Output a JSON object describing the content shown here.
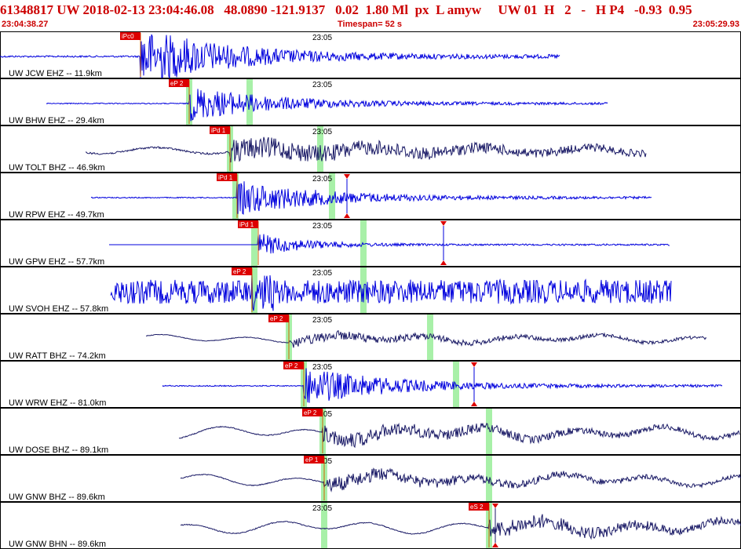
{
  "header": {
    "event_id": "61348817",
    "network": "UW",
    "datetime": "2018-02-13 23:04:46.08",
    "lat": "48.0890",
    "lon": "-121.9137",
    "depth": "0.02",
    "magnitude": "1.80",
    "mag_type": "Ml",
    "etype": "px",
    "flag": "L",
    "user": "amyw",
    "source": "UW",
    "version": "01",
    "h1": "H",
    "h2": "2",
    "h3": "-",
    "h4": "H",
    "h5": "P4",
    "v1": "-0.93",
    "v2": "0.95",
    "start_time": "23:04:38.27",
    "timespan": "Timespan=  52 s",
    "end_time": "23:05:29.93"
  },
  "time_tick_label": "23:05",
  "colors": {
    "header_text": "#cc0000",
    "trace_blue": "#0000dd",
    "trace_navy": "#1a1a66",
    "pick_box": "#dd0000",
    "pick_text": "#ffffff",
    "theoretical_band": "#a8f0a8",
    "amp_marker": "#dd0000",
    "panel_border": "#000000"
  },
  "traces": [
    {
      "label": "UW JCW EHZ -- 11.9km",
      "pick": "iPc0",
      "color": "blue",
      "amp": 0.95,
      "style": "impulsive",
      "start": 0.0,
      "end": 0.755,
      "pick_frac": 0.19,
      "band_fracs": [],
      "markers": []
    },
    {
      "label": "UW BHW EHZ -- 29.4km",
      "pick": "eP 2",
      "color": "blue",
      "amp": 0.55,
      "style": "impulsive",
      "start": 0.063,
      "end": 0.82,
      "pick_frac": 0.255,
      "band_fracs": [
        0.255,
        0.337
      ],
      "markers": []
    },
    {
      "label": "UW TOLT BHZ -- 46.9km",
      "pick": "iPd 1",
      "color": "navy",
      "amp": 0.5,
      "style": "noisy",
      "start": 0.115,
      "end": 0.872,
      "pick_frac": 0.31,
      "band_fracs": [
        0.31,
        0.432
      ],
      "markers": []
    },
    {
      "label": "UW RPW EHZ -- 49.7km",
      "pick": "iPd 1",
      "color": "blue",
      "amp": 0.55,
      "style": "impulsive",
      "start": 0.123,
      "end": 0.879,
      "pick_frac": 0.32,
      "band_fracs": [
        0.318,
        0.448
      ],
      "markers": [
        0.468
      ]
    },
    {
      "label": "UW GPW EHZ -- 57.7km",
      "pick": "iPd 1",
      "color": "blue",
      "amp": 0.45,
      "style": "flat",
      "start": 0.147,
      "end": 0.904,
      "pick_frac": 0.348,
      "band_fracs": [
        0.343,
        0.49
      ],
      "markers": [
        0.598
      ]
    },
    {
      "label": "UW SVOH EHZ -- 57.8km",
      "pick": "eP 2",
      "color": "blue",
      "amp": 0.6,
      "style": "constant",
      "start": 0.149,
      "end": 0.906,
      "pick_frac": 0.34,
      "band_fracs": [
        0.343,
        0.49
      ],
      "markers": []
    },
    {
      "label": "UW RATT BHZ -- 74.2km",
      "pick": "eP 2",
      "color": "navy",
      "amp": 0.35,
      "style": "longperiod",
      "start": 0.197,
      "end": 0.953,
      "pick_frac": 0.39,
      "band_fracs": [
        0.39,
        0.58
      ],
      "markers": []
    },
    {
      "label": "UW WRW EHZ -- 81.0km",
      "pick": "eP 2",
      "color": "blue",
      "amp": 0.6,
      "style": "impulsive",
      "start": 0.219,
      "end": 0.975,
      "pick_frac": 0.41,
      "band_fracs": [
        0.41,
        0.615
      ],
      "markers": [
        0.64
      ]
    },
    {
      "label": "UW DOSE BHZ -- 89.1km",
      "pick": "eP 2",
      "color": "navy",
      "amp": 0.55,
      "style": "longperiod",
      "start": 0.242,
      "end": 0.998,
      "pick_frac": 0.435,
      "band_fracs": [
        0.435,
        0.66
      ],
      "markers": []
    },
    {
      "label": "UW GNW BHZ -- 89.6km",
      "pick": "eP 1",
      "color": "navy",
      "amp": 0.5,
      "style": "longperiod",
      "start": 0.244,
      "end": 1.0,
      "pick_frac": 0.438,
      "band_fracs": [
        0.438,
        0.66
      ],
      "markers": []
    },
    {
      "label": "UW GNW BHN -- 89.6km",
      "pick": "eS 2",
      "color": "navy",
      "amp": 0.55,
      "style": "longperiod",
      "start": 0.244,
      "end": 1.0,
      "pick_frac": 0.66,
      "band_fracs": [
        0.438,
        0.66
      ],
      "markers": [
        0.668
      ]
    }
  ]
}
